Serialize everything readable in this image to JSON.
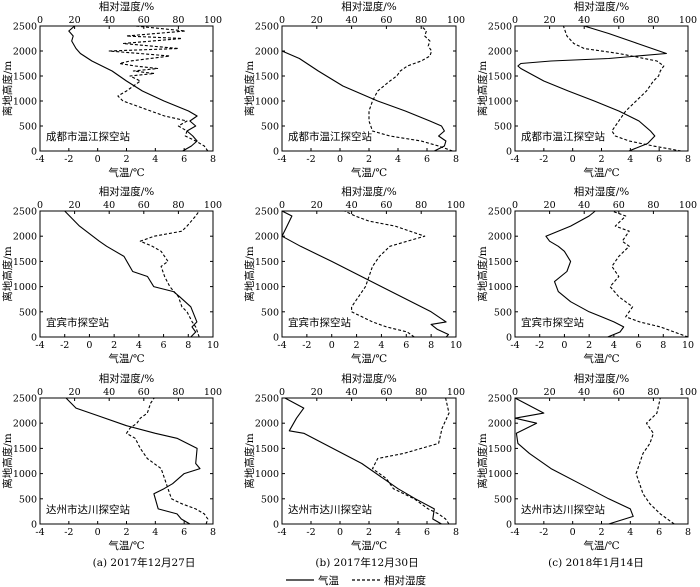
{
  "figure": {
    "captions": [
      "(a)  2017年12月27日",
      "(b)  2017年12月30日",
      "(c)  2018年1月14日"
    ],
    "legend": {
      "solid_label": "气温",
      "dashed_label": "相对湿度"
    },
    "colors": {
      "line": "#000000",
      "background": "#ffffff"
    }
  },
  "chart_data": [
    {
      "type": "line",
      "station": "成都市温江探空站",
      "xlabel": "气温/℃",
      "x2label": "相对湿度/%",
      "ylabel": "离地高度/m",
      "xlim": [
        -4,
        8
      ],
      "x2lim": [
        0,
        100
      ],
      "ylim": [
        0,
        2500
      ],
      "xticks": [
        -4,
        -2,
        0,
        2,
        4,
        6,
        8
      ],
      "x2ticks": [
        0,
        20,
        40,
        60,
        80,
        100
      ],
      "yticks": [
        0,
        500,
        1000,
        1500,
        2000,
        2500
      ],
      "series": [
        {
          "name": "气温",
          "axis": "bottom",
          "style": "solid",
          "x": [
            5.9,
            6.5,
            6.9,
            6.6,
            6.2,
            6.8,
            6.4,
            6.9,
            6.3,
            4.6,
            3.1,
            2.0,
            1.0,
            -0.4,
            -1.2,
            -1.5,
            -1.8,
            -1.7,
            -2.0,
            -1.6
          ],
          "y": [
            0,
            100,
            200,
            300,
            400,
            500,
            600,
            700,
            800,
            1000,
            1200,
            1400,
            1600,
            1800,
            1950,
            2050,
            2200,
            2300,
            2400,
            2500
          ]
        },
        {
          "name": "相对湿度",
          "axis": "top",
          "style": "dashed",
          "x": [
            97,
            95,
            90,
            84,
            85,
            80,
            85,
            72,
            64,
            56,
            48,
            45,
            50,
            58,
            52,
            66,
            54,
            68,
            55,
            46,
            52,
            75,
            40,
            80,
            48,
            82,
            50,
            84,
            55
          ],
          "y": [
            0,
            100,
            200,
            300,
            400,
            500,
            600,
            700,
            800,
            900,
            1000,
            1100,
            1200,
            1400,
            1500,
            1550,
            1600,
            1650,
            1700,
            1750,
            1800,
            1900,
            2000,
            2050,
            2150,
            2250,
            2300,
            2400,
            2500
          ]
        }
      ]
    },
    {
      "type": "line",
      "station": "成都市温江探空站",
      "xlabel": "气温/℃",
      "x2label": "相对湿度/%",
      "ylabel": "离地高度/m",
      "xlim": [
        -4,
        8
      ],
      "x2lim": [
        0,
        100
      ],
      "ylim": [
        0,
        2500
      ],
      "xticks": [
        -4,
        -2,
        0,
        2,
        4,
        6,
        8
      ],
      "x2ticks": [
        0,
        20,
        40,
        60,
        80,
        100
      ],
      "yticks": [
        0,
        500,
        1000,
        1500,
        2000,
        2500
      ],
      "series": [
        {
          "name": "气温",
          "axis": "bottom",
          "style": "solid",
          "x": [
            6.5,
            7.2,
            7.3,
            6.8,
            7.2,
            7.0,
            6.2,
            4.5,
            2.6,
            0.2,
            -1.5,
            -2.8,
            -4.0
          ],
          "y": [
            0,
            100,
            200,
            300,
            400,
            500,
            600,
            800,
            1000,
            1300,
            1600,
            1850,
            2000
          ]
        },
        {
          "name": "相对湿度",
          "axis": "top",
          "style": "dashed",
          "x": [
            98,
            90,
            80,
            62,
            52,
            50,
            50,
            52,
            55,
            62,
            66,
            68,
            72,
            80,
            85,
            86,
            84,
            85,
            82,
            83,
            80
          ],
          "y": [
            0,
            100,
            200,
            300,
            400,
            600,
            800,
            1000,
            1200,
            1400,
            1500,
            1600,
            1700,
            1800,
            1900,
            2000,
            2100,
            2200,
            2300,
            2400,
            2500
          ]
        }
      ]
    },
    {
      "type": "line",
      "station": "成都市温江探空站",
      "xlabel": "气温/℃",
      "x2label": "相对湿度/%",
      "ylabel": "离地高度/m",
      "xlim": [
        -4,
        8
      ],
      "x2lim": [
        0,
        100
      ],
      "ylim": [
        0,
        2500
      ],
      "xticks": [
        -4,
        -2,
        0,
        2,
        4,
        6,
        8
      ],
      "x2ticks": [
        0,
        20,
        40,
        60,
        80,
        100
      ],
      "yticks": [
        0,
        500,
        1000,
        1500,
        2000,
        2500
      ],
      "series": [
        {
          "name": "气温",
          "axis": "bottom",
          "style": "solid",
          "x": [
            3.9,
            5.2,
            5.7,
            5.4,
            4.6,
            3.2,
            1.5,
            -0.3,
            -2.0,
            -3.6,
            -3.8,
            -3.6,
            -1.5,
            2.5,
            6.5,
            4.5,
            2.5,
            0.8
          ],
          "y": [
            0,
            150,
            300,
            400,
            600,
            800,
            1000,
            1200,
            1400,
            1650,
            1700,
            1750,
            1800,
            1850,
            1950,
            2150,
            2350,
            2500
          ]
        },
        {
          "name": "相对湿度",
          "axis": "top",
          "style": "dashed",
          "x": [
            96,
            80,
            66,
            58,
            56,
            60,
            64,
            70,
            76,
            80,
            83,
            84,
            86,
            82,
            60,
            40,
            34,
            30,
            28
          ],
          "y": [
            0,
            100,
            200,
            300,
            400,
            600,
            800,
            1000,
            1200,
            1400,
            1500,
            1600,
            1700,
            1800,
            1950,
            2050,
            2150,
            2300,
            2500
          ]
        }
      ]
    },
    {
      "type": "line",
      "station": "宜宾市探空站",
      "xlabel": "气温/℃",
      "x2label": "相对湿度/%",
      "ylabel": "离地高度/m",
      "xlim": [
        -4,
        10
      ],
      "x2lim": [
        0,
        100
      ],
      "ylim": [
        0,
        2500
      ],
      "xticks": [
        -4,
        -2,
        0,
        2,
        4,
        6,
        8,
        10
      ],
      "x2ticks": [
        0,
        20,
        40,
        60,
        80,
        100
      ],
      "yticks": [
        0,
        500,
        1000,
        1500,
        2000,
        2500
      ],
      "series": [
        {
          "name": "气温",
          "axis": "bottom",
          "style": "solid",
          "x": [
            8.2,
            8.6,
            8.3,
            8.7,
            8.2,
            7.3,
            6.8,
            5.2,
            4.7,
            3.5,
            2.8,
            1.4,
            0.8,
            -0.8,
            -2.0
          ],
          "y": [
            0,
            100,
            200,
            300,
            600,
            800,
            900,
            1000,
            1200,
            1300,
            1600,
            1800,
            1900,
            2200,
            2500
          ]
        },
        {
          "name": "相对湿度",
          "axis": "top",
          "style": "dashed",
          "x": [
            92,
            90,
            88,
            85,
            82,
            80,
            75,
            72,
            70,
            74,
            70,
            65,
            58,
            66,
            82,
            85,
            90,
            92
          ],
          "y": [
            0,
            200,
            300,
            500,
            600,
            800,
            1000,
            1200,
            1400,
            1500,
            1700,
            1800,
            1900,
            2000,
            2100,
            2200,
            2400,
            2500
          ]
        }
      ]
    },
    {
      "type": "line",
      "station": "宜宾市探空站",
      "xlabel": "气温/℃",
      "x2label": "相对湿度/%",
      "ylabel": "离地高度/m",
      "xlim": [
        -4,
        10
      ],
      "x2lim": [
        0,
        100
      ],
      "ylim": [
        0,
        2500
      ],
      "xticks": [
        -4,
        -2,
        0,
        2,
        4,
        6,
        8,
        10
      ],
      "x2ticks": [
        0,
        20,
        40,
        60,
        80,
        100
      ],
      "yticks": [
        0,
        500,
        1000,
        1500,
        2000,
        2500
      ],
      "series": [
        {
          "name": "气温",
          "axis": "bottom",
          "style": "solid",
          "x": [
            9.2,
            9.4,
            8.5,
            8.0,
            9.2,
            8.0,
            4.0,
            0.0,
            -2.5,
            -4.0,
            -3.6,
            -3.2,
            -4.0
          ],
          "y": [
            0,
            50,
            150,
            250,
            300,
            500,
            1000,
            1500,
            1800,
            2000,
            2200,
            2400,
            2500
          ]
        },
        {
          "name": "相对湿度",
          "axis": "top",
          "style": "dashed",
          "x": [
            76,
            72,
            60,
            52,
            46,
            40,
            40,
            44,
            48,
            50,
            52,
            56,
            62,
            72,
            82,
            65,
            50,
            42,
            36
          ],
          "y": [
            0,
            100,
            200,
            300,
            400,
            500,
            600,
            800,
            1000,
            1200,
            1400,
            1600,
            1800,
            1900,
            2000,
            2200,
            2300,
            2400,
            2500
          ]
        }
      ]
    },
    {
      "type": "line",
      "station": "宜宾市探空站",
      "xlabel": "气温/℃",
      "x2label": "相对湿度/%",
      "ylabel": "离地高度/m",
      "xlim": [
        -4,
        10
      ],
      "x2lim": [
        0,
        100
      ],
      "ylim": [
        0,
        2500
      ],
      "xticks": [
        -4,
        -2,
        0,
        2,
        4,
        6,
        8,
        10
      ],
      "x2ticks": [
        0,
        20,
        40,
        60,
        80,
        100
      ],
      "yticks": [
        0,
        500,
        1000,
        1500,
        2000,
        2500
      ],
      "series": [
        {
          "name": "气温",
          "axis": "bottom",
          "style": "solid",
          "x": [
            3.5,
            4.5,
            4.8,
            4.0,
            3.0,
            2.0,
            0.5,
            -0.5,
            -0.8,
            0.2,
            0.5,
            0.0,
            -0.5,
            -1.2,
            -1.5,
            0.5,
            2.0,
            2.5
          ],
          "y": [
            0,
            100,
            200,
            300,
            400,
            500,
            700,
            900,
            1100,
            1300,
            1500,
            1700,
            1800,
            1900,
            2000,
            2200,
            2400,
            2500
          ]
        },
        {
          "name": "相对湿度",
          "axis": "top",
          "style": "dashed",
          "x": [
            100,
            92,
            84,
            72,
            64,
            68,
            60,
            55,
            60,
            56,
            60,
            66,
            62,
            64,
            66,
            58,
            64,
            56
          ],
          "y": [
            0,
            100,
            200,
            300,
            400,
            600,
            800,
            1000,
            1200,
            1400,
            1600,
            1800,
            1900,
            2000,
            2100,
            2200,
            2400,
            2500
          ]
        }
      ]
    },
    {
      "type": "line",
      "station": "达州市达川探空站",
      "xlabel": "气温/℃",
      "x2label": "相对湿度/%",
      "ylabel": "离地高度/m",
      "xlim": [
        -4,
        8
      ],
      "x2lim": [
        0,
        100
      ],
      "ylim": [
        0,
        2500
      ],
      "xticks": [
        -4,
        -2,
        0,
        2,
        4,
        6,
        8
      ],
      "x2ticks": [
        0,
        20,
        40,
        60,
        80,
        100
      ],
      "yticks": [
        0,
        500,
        1000,
        1500,
        2000,
        2500
      ],
      "series": [
        {
          "name": "气温",
          "axis": "bottom",
          "style": "solid",
          "x": [
            6.4,
            5.8,
            5.5,
            4.2,
            3.9,
            4.6,
            5.2,
            6.0,
            7.1,
            6.8,
            6.9,
            5.5,
            4.0,
            2.0,
            0.0,
            -1.5,
            -2.2
          ],
          "y": [
            0,
            100,
            200,
            300,
            600,
            700,
            800,
            1000,
            1100,
            1200,
            1500,
            1700,
            1800,
            1950,
            2150,
            2300,
            2500
          ]
        },
        {
          "name": "相对湿度",
          "axis": "top",
          "style": "dashed",
          "x": [
            96,
            97,
            95,
            90,
            82,
            76,
            74,
            72,
            70,
            62,
            58,
            55,
            50,
            52,
            56,
            58,
            62,
            64,
            66
          ],
          "y": [
            0,
            100,
            200,
            300,
            400,
            500,
            700,
            900,
            1100,
            1300,
            1500,
            1700,
            1800,
            1900,
            2000,
            2100,
            2200,
            2400,
            2500
          ]
        }
      ]
    },
    {
      "type": "line",
      "station": "达州市达川探空站",
      "xlabel": "气温/℃",
      "x2label": "相对湿度/%",
      "ylabel": "离地高度/m",
      "xlim": [
        -4,
        8
      ],
      "x2lim": [
        0,
        100
      ],
      "ylim": [
        0,
        2500
      ],
      "xticks": [
        -4,
        -2,
        0,
        2,
        4,
        6,
        8
      ],
      "x2ticks": [
        0,
        20,
        40,
        60,
        80,
        100
      ],
      "yticks": [
        0,
        500,
        1000,
        1500,
        2000,
        2500
      ],
      "series": [
        {
          "name": "气温",
          "axis": "bottom",
          "style": "solid",
          "x": [
            7.0,
            6.4,
            6.5,
            5.2,
            4.0,
            3.0,
            1.5,
            -0.5,
            -2.5,
            -3.5,
            -3.0,
            -2.5,
            -3.8
          ],
          "y": [
            0,
            100,
            300,
            500,
            700,
            900,
            1200,
            1500,
            1800,
            1850,
            2100,
            2300,
            2500
          ]
        },
        {
          "name": "相对湿度",
          "axis": "top",
          "style": "dashed",
          "x": [
            96,
            94,
            90,
            84,
            76,
            64,
            60,
            56,
            52,
            55,
            70,
            80,
            90,
            92,
            96,
            94
          ],
          "y": [
            0,
            100,
            200,
            300,
            500,
            700,
            900,
            1000,
            1100,
            1300,
            1400,
            1500,
            1600,
            1900,
            2200,
            2500
          ]
        }
      ]
    },
    {
      "type": "line",
      "station": "达州市达川探空站",
      "xlabel": "气温/℃",
      "x2label": "相对湿度/%",
      "ylabel": "离地高度/m",
      "xlim": [
        -4,
        8
      ],
      "x2lim": [
        0,
        100
      ],
      "ylim": [
        0,
        2500
      ],
      "xticks": [
        -4,
        -2,
        0,
        2,
        4,
        6,
        8
      ],
      "x2ticks": [
        0,
        20,
        40,
        60,
        80,
        100
      ],
      "yticks": [
        0,
        500,
        1000,
        1500,
        2000,
        2500
      ],
      "series": [
        {
          "name": "气温",
          "axis": "bottom",
          "style": "solid",
          "x": [
            2.5,
            4.2,
            4.0,
            2.5,
            0.5,
            -1.5,
            -3.0,
            -3.8,
            -3.9,
            -2.5,
            -4.0,
            -2.0,
            -4.0
          ],
          "y": [
            0,
            150,
            300,
            500,
            800,
            1100,
            1400,
            1600,
            1800,
            2000,
            2100,
            2200,
            2500
          ]
        },
        {
          "name": "相对湿度",
          "axis": "top",
          "style": "dashed",
          "x": [
            92,
            84,
            78,
            74,
            72,
            70,
            72,
            74,
            78,
            80,
            76,
            82,
            84
          ],
          "y": [
            0,
            200,
            400,
            600,
            800,
            1000,
            1200,
            1400,
            1600,
            1800,
            2000,
            2200,
            2500
          ]
        }
      ]
    }
  ]
}
